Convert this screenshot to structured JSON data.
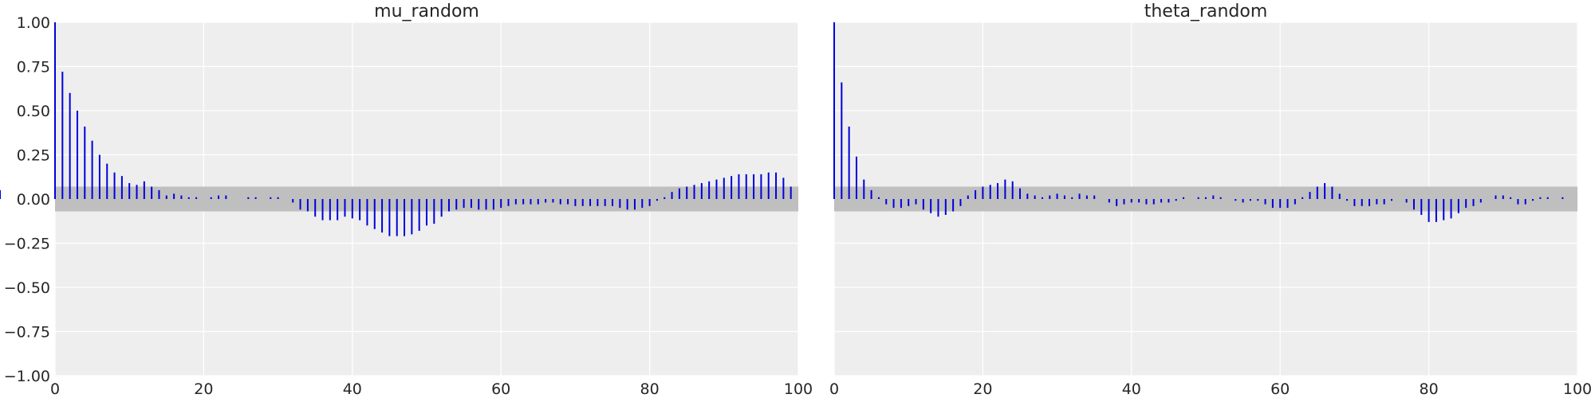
{
  "chart_data": [
    {
      "type": "bar",
      "title": "mu_random",
      "xlim": [
        0,
        100
      ],
      "ylim": [
        -1,
        1
      ],
      "xticks": [
        0,
        20,
        40,
        60,
        80,
        100
      ],
      "xtick_labels": [
        "0",
        "20",
        "40",
        "60",
        "80",
        "100"
      ],
      "yticks": [
        1,
        0.75,
        0.5,
        0.25,
        0,
        -0.25,
        -0.5,
        -0.75,
        -1
      ],
      "ytick_labels": [
        "1.00",
        "0.75",
        "0.50",
        "0.25",
        "0.00",
        "−0.25",
        "−0.50",
        "−0.75",
        "−1.00"
      ],
      "grid": true,
      "confidence_band": [
        -0.07,
        0.07
      ],
      "lags": [
        0,
        1,
        2,
        3,
        4,
        5,
        6,
        7,
        8,
        9,
        10,
        11,
        12,
        13,
        14,
        15,
        16,
        17,
        18,
        19,
        20,
        21,
        22,
        23,
        24,
        25,
        26,
        27,
        28,
        29,
        30,
        31,
        32,
        33,
        34,
        35,
        36,
        37,
        38,
        39,
        40,
        41,
        42,
        43,
        44,
        45,
        46,
        47,
        48,
        49,
        50,
        51,
        52,
        53,
        54,
        55,
        56,
        57,
        58,
        59,
        60,
        61,
        62,
        63,
        64,
        65,
        66,
        67,
        68,
        69,
        70,
        71,
        72,
        73,
        74,
        75,
        76,
        77,
        78,
        79,
        80,
        81,
        82,
        83,
        84,
        85,
        86,
        87,
        88,
        89,
        90,
        91,
        92,
        93,
        94,
        95,
        96,
        97,
        98,
        99
      ],
      "values": [
        1.0,
        0.72,
        0.6,
        0.5,
        0.41,
        0.33,
        0.25,
        0.2,
        0.15,
        0.13,
        0.09,
        0.08,
        0.1,
        0.07,
        0.05,
        0.02,
        0.03,
        0.02,
        0.01,
        0.01,
        0.0,
        0.01,
        0.02,
        0.02,
        0.0,
        0.0,
        0.01,
        0.01,
        0.0,
        0.01,
        0.01,
        0.0,
        -0.02,
        -0.06,
        -0.07,
        -0.1,
        -0.12,
        -0.12,
        -0.12,
        -0.1,
        -0.11,
        -0.12,
        -0.15,
        -0.17,
        -0.19,
        -0.21,
        -0.21,
        -0.21,
        -0.2,
        -0.18,
        -0.15,
        -0.14,
        -0.1,
        -0.07,
        -0.06,
        -0.05,
        -0.05,
        -0.06,
        -0.06,
        -0.06,
        -0.05,
        -0.04,
        -0.03,
        -0.03,
        -0.03,
        -0.03,
        -0.02,
        -0.02,
        -0.03,
        -0.03,
        -0.04,
        -0.04,
        -0.04,
        -0.04,
        -0.04,
        -0.04,
        -0.05,
        -0.06,
        -0.06,
        -0.05,
        -0.04,
        -0.01,
        0.01,
        0.04,
        0.06,
        0.07,
        0.08,
        0.09,
        0.1,
        0.11,
        0.12,
        0.13,
        0.14,
        0.14,
        0.14,
        0.14,
        0.15,
        0.15,
        0.12,
        0.07,
        0.05,
        0.04
      ]
    },
    {
      "type": "bar",
      "title": "theta_random",
      "xlim": [
        0,
        100
      ],
      "ylim": [
        -1,
        1
      ],
      "xticks": [
        0,
        20,
        40,
        60,
        80,
        100
      ],
      "xtick_labels": [
        "0",
        "20",
        "40",
        "60",
        "80",
        "100"
      ],
      "grid": true,
      "confidence_band": [
        -0.07,
        0.07
      ],
      "lags": [
        0,
        1,
        2,
        3,
        4,
        5,
        6,
        7,
        8,
        9,
        10,
        11,
        12,
        13,
        14,
        15,
        16,
        17,
        18,
        19,
        20,
        21,
        22,
        23,
        24,
        25,
        26,
        27,
        28,
        29,
        30,
        31,
        32,
        33,
        34,
        35,
        36,
        37,
        38,
        39,
        40,
        41,
        42,
        43,
        44,
        45,
        46,
        47,
        48,
        49,
        50,
        51,
        52,
        53,
        54,
        55,
        56,
        57,
        58,
        59,
        60,
        61,
        62,
        63,
        64,
        65,
        66,
        67,
        68,
        69,
        70,
        71,
        72,
        73,
        74,
        75,
        76,
        77,
        78,
        79,
        80,
        81,
        82,
        83,
        84,
        85,
        86,
        87,
        88,
        89,
        90,
        91,
        92,
        93,
        94,
        95,
        96,
        97,
        98,
        99
      ],
      "values": [
        1.0,
        0.66,
        0.41,
        0.24,
        0.11,
        0.05,
        0.01,
        -0.03,
        -0.05,
        -0.05,
        -0.04,
        -0.03,
        -0.06,
        -0.08,
        -0.1,
        -0.09,
        -0.07,
        -0.04,
        0.02,
        0.05,
        0.07,
        0.08,
        0.09,
        0.11,
        0.1,
        0.06,
        0.03,
        0.02,
        0.01,
        0.02,
        0.03,
        0.02,
        0.01,
        0.03,
        0.02,
        0.02,
        0.0,
        -0.02,
        -0.04,
        -0.03,
        -0.02,
        -0.02,
        -0.03,
        -0.03,
        -0.02,
        -0.02,
        -0.01,
        0.01,
        0.0,
        0.01,
        0.01,
        0.02,
        0.01,
        0.0,
        -0.01,
        -0.02,
        -0.01,
        -0.01,
        -0.03,
        -0.05,
        -0.05,
        -0.05,
        -0.03,
        0.01,
        0.04,
        0.07,
        0.09,
        0.07,
        0.03,
        -0.01,
        -0.04,
        -0.04,
        -0.04,
        -0.03,
        -0.03,
        -0.01,
        0.0,
        -0.02,
        -0.06,
        -0.09,
        -0.13,
        -0.13,
        -0.12,
        -0.11,
        -0.08,
        -0.05,
        -0.04,
        -0.02,
        0.0,
        0.02,
        0.02,
        0.01,
        -0.03,
        -0.03,
        -0.01,
        0.01,
        0.01,
        0.0,
        0.01,
        0.0
      ]
    }
  ]
}
